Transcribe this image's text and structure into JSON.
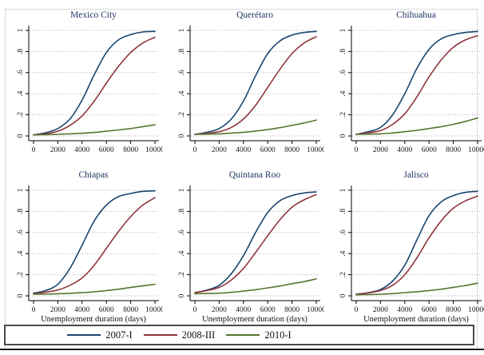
{
  "figure": {
    "x_ticks": [
      0,
      2000,
      4000,
      6000,
      8000,
      10000
    ],
    "y_ticks": [
      {
        "label": "0",
        "value": 0
      },
      {
        "label": ".2",
        "value": 0.2
      },
      {
        "label": ".4",
        "value": 0.4
      },
      {
        "label": ".6",
        "value": 0.6
      },
      {
        "label": ".8",
        "value": 0.8
      },
      {
        "label": "1",
        "value": 1
      }
    ],
    "xlim": [
      0,
      10000
    ],
    "ylim": [
      0,
      1
    ],
    "grid": "horizontal-dotted",
    "axis_color": "#000000",
    "grid_color": "#b3b3b3",
    "title_color": "#1f3362"
  },
  "legend": {
    "position": "bottom-box",
    "entries": [
      {
        "label": "2007-I",
        "color": "#1a476f"
      },
      {
        "label": "2008-III",
        "color": "#90353b"
      },
      {
        "label": "2010-I",
        "color": "#55752f"
      }
    ]
  },
  "chart_data": [
    {
      "type": "line",
      "title": "Mexico City",
      "xlabel": "",
      "x": [
        0,
        1000,
        2000,
        3000,
        4000,
        5000,
        6000,
        7000,
        8000,
        9000,
        10000
      ],
      "ylim": [
        0,
        1
      ],
      "series": [
        {
          "name": "2007-I",
          "color": "#1a476f",
          "values": [
            0.01,
            0.03,
            0.07,
            0.16,
            0.34,
            0.58,
            0.79,
            0.91,
            0.96,
            0.985,
            0.99
          ]
        },
        {
          "name": "2008-III",
          "color": "#90353b",
          "values": [
            0.01,
            0.02,
            0.045,
            0.1,
            0.19,
            0.33,
            0.5,
            0.66,
            0.79,
            0.88,
            0.935
          ]
        },
        {
          "name": "2010-I",
          "color": "#55752f",
          "values": [
            0.01,
            0.012,
            0.015,
            0.02,
            0.025,
            0.033,
            0.045,
            0.057,
            0.07,
            0.088,
            0.105
          ]
        }
      ]
    },
    {
      "type": "line",
      "title": "Querétaro",
      "xlabel": "",
      "x": [
        0,
        1000,
        2000,
        3000,
        4000,
        5000,
        6000,
        7000,
        8000,
        9000,
        10000
      ],
      "ylim": [
        0,
        1
      ],
      "series": [
        {
          "name": "2007-I",
          "color": "#1a476f",
          "values": [
            0.015,
            0.035,
            0.07,
            0.16,
            0.33,
            0.57,
            0.78,
            0.9,
            0.955,
            0.98,
            0.99
          ]
        },
        {
          "name": "2008-III",
          "color": "#90353b",
          "values": [
            0.015,
            0.025,
            0.04,
            0.08,
            0.16,
            0.29,
            0.46,
            0.63,
            0.78,
            0.88,
            0.94
          ]
        },
        {
          "name": "2010-I",
          "color": "#55752f",
          "values": [
            0.015,
            0.017,
            0.02,
            0.027,
            0.035,
            0.046,
            0.06,
            0.078,
            0.1,
            0.123,
            0.15
          ]
        }
      ]
    },
    {
      "type": "line",
      "title": "Chihuahua",
      "xlabel": "",
      "x": [
        0,
        1000,
        2000,
        3000,
        4000,
        5000,
        6000,
        7000,
        8000,
        9000,
        10000
      ],
      "ylim": [
        0,
        1
      ],
      "series": [
        {
          "name": "2007-I",
          "color": "#1a476f",
          "values": [
            0.015,
            0.04,
            0.08,
            0.2,
            0.4,
            0.64,
            0.82,
            0.92,
            0.96,
            0.98,
            0.99
          ]
        },
        {
          "name": "2008-III",
          "color": "#90353b",
          "values": [
            0.015,
            0.03,
            0.05,
            0.11,
            0.21,
            0.37,
            0.56,
            0.72,
            0.84,
            0.91,
            0.95
          ]
        },
        {
          "name": "2010-I",
          "color": "#55752f",
          "values": [
            0.015,
            0.017,
            0.02,
            0.028,
            0.04,
            0.053,
            0.07,
            0.088,
            0.11,
            0.138,
            0.17
          ]
        }
      ]
    },
    {
      "type": "line",
      "title": "Chiapas",
      "xlabel": "Unemployment duration (days)",
      "x": [
        0,
        1000,
        2000,
        3000,
        4000,
        5000,
        6000,
        7000,
        8000,
        9000,
        10000
      ],
      "ylim": [
        0,
        1
      ],
      "series": [
        {
          "name": "2007-I",
          "color": "#1a476f",
          "values": [
            0.025,
            0.05,
            0.11,
            0.26,
            0.48,
            0.71,
            0.86,
            0.94,
            0.97,
            0.99,
            0.995
          ]
        },
        {
          "name": "2008-III",
          "color": "#90353b",
          "values": [
            0.02,
            0.035,
            0.055,
            0.1,
            0.17,
            0.29,
            0.45,
            0.61,
            0.75,
            0.86,
            0.93
          ]
        },
        {
          "name": "2010-I",
          "color": "#55752f",
          "values": [
            0.015,
            0.017,
            0.02,
            0.024,
            0.03,
            0.038,
            0.05,
            0.063,
            0.08,
            0.094,
            0.11
          ]
        }
      ]
    },
    {
      "type": "line",
      "title": "Quintana Roo",
      "xlabel": "Unemployment duration (days)",
      "x": [
        0,
        1000,
        2000,
        3000,
        4000,
        5000,
        6000,
        7000,
        8000,
        9000,
        10000
      ],
      "ylim": [
        0,
        1
      ],
      "series": [
        {
          "name": "2007-I",
          "color": "#1a476f",
          "values": [
            0.03,
            0.055,
            0.1,
            0.21,
            0.38,
            0.6,
            0.79,
            0.9,
            0.95,
            0.975,
            0.985
          ]
        },
        {
          "name": "2008-III",
          "color": "#90353b",
          "values": [
            0.03,
            0.05,
            0.08,
            0.15,
            0.26,
            0.41,
            0.57,
            0.72,
            0.84,
            0.91,
            0.96
          ]
        },
        {
          "name": "2010-I",
          "color": "#55752f",
          "values": [
            0.02,
            0.022,
            0.025,
            0.033,
            0.045,
            0.058,
            0.075,
            0.093,
            0.115,
            0.135,
            0.16
          ]
        }
      ]
    },
    {
      "type": "line",
      "title": "Jalisco",
      "xlabel": "Unemployment duration (days)",
      "x": [
        0,
        1000,
        2000,
        3000,
        4000,
        5000,
        6000,
        7000,
        8000,
        9000,
        10000
      ],
      "ylim": [
        0,
        1
      ],
      "series": [
        {
          "name": "2007-I",
          "color": "#1a476f",
          "values": [
            0.015,
            0.03,
            0.06,
            0.14,
            0.29,
            0.53,
            0.76,
            0.89,
            0.95,
            0.98,
            0.99
          ]
        },
        {
          "name": "2008-III",
          "color": "#90353b",
          "values": [
            0.015,
            0.028,
            0.05,
            0.1,
            0.2,
            0.36,
            0.55,
            0.71,
            0.83,
            0.9,
            0.945
          ]
        },
        {
          "name": "2010-I",
          "color": "#55752f",
          "values": [
            0.01,
            0.012,
            0.015,
            0.021,
            0.03,
            0.039,
            0.05,
            0.063,
            0.08,
            0.098,
            0.12
          ]
        }
      ]
    }
  ]
}
